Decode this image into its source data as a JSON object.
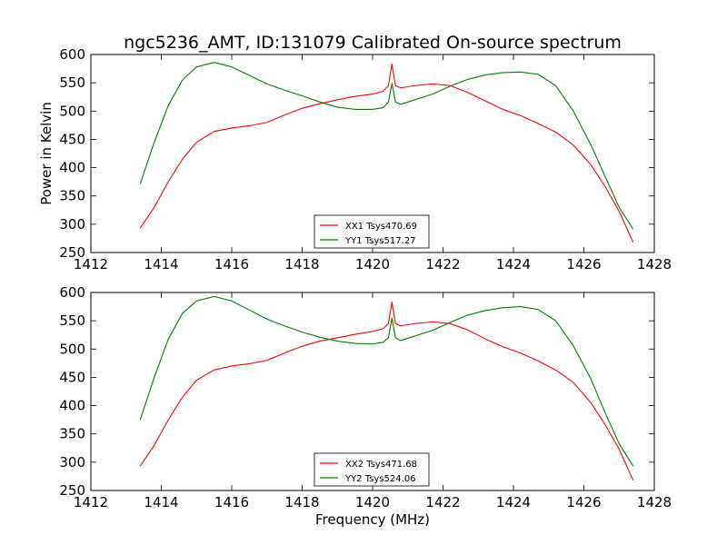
{
  "title": "ngc5236_AMT, ID:131079 Calibrated On-source spectrum",
  "chart_data": [
    {
      "type": "line",
      "title": "ngc5236_AMT, ID:131079 Calibrated On-source spectrum",
      "xlabel": "",
      "ylabel": "Power in Kelvin",
      "xlim": [
        1412,
        1428
      ],
      "ylim": [
        250,
        600
      ],
      "xticks": [
        1412,
        1414,
        1416,
        1418,
        1420,
        1422,
        1424,
        1426,
        1428
      ],
      "yticks": [
        250,
        300,
        350,
        400,
        450,
        500,
        550,
        600
      ],
      "legend_position": "lower-center",
      "series": [
        {
          "name": "XX1 Tsys470.69",
          "color": "#ff0000",
          "x": [
            1413.4,
            1413.8,
            1414.2,
            1414.6,
            1415.0,
            1415.5,
            1416.0,
            1416.5,
            1417.0,
            1417.5,
            1418.0,
            1418.5,
            1419.0,
            1419.5,
            1420.0,
            1420.3,
            1420.45,
            1420.55,
            1420.65,
            1420.8,
            1421.2,
            1421.7,
            1422.2,
            1422.7,
            1423.2,
            1423.7,
            1424.2,
            1424.7,
            1425.2,
            1425.7,
            1426.2,
            1426.6,
            1427.0,
            1427.4
          ],
          "y": [
            293,
            330,
            375,
            415,
            445,
            464,
            470,
            474,
            480,
            493,
            505,
            513,
            520,
            526,
            530,
            535,
            545,
            583,
            545,
            541,
            545,
            548,
            545,
            533,
            518,
            503,
            492,
            478,
            463,
            440,
            405,
            367,
            323,
            268
          ]
        },
        {
          "name": "YY1 Tsys517.27",
          "color": "#008000",
          "x": [
            1413.4,
            1413.8,
            1414.2,
            1414.6,
            1415.0,
            1415.5,
            1416.0,
            1416.5,
            1417.0,
            1417.5,
            1418.0,
            1418.5,
            1419.0,
            1419.5,
            1420.0,
            1420.3,
            1420.45,
            1420.55,
            1420.65,
            1420.8,
            1421.2,
            1421.7,
            1422.2,
            1422.7,
            1423.2,
            1423.7,
            1424.2,
            1424.7,
            1425.2,
            1425.7,
            1426.2,
            1426.6,
            1427.0,
            1427.4
          ],
          "y": [
            371,
            445,
            510,
            555,
            578,
            586,
            578,
            563,
            548,
            537,
            527,
            516,
            507,
            503,
            503,
            506,
            516,
            549,
            516,
            512,
            520,
            530,
            544,
            556,
            564,
            568,
            569,
            565,
            545,
            500,
            440,
            385,
            330,
            291
          ]
        }
      ]
    },
    {
      "type": "line",
      "title": "",
      "xlabel": "Frequency (MHz)",
      "ylabel": "",
      "xlim": [
        1412,
        1428
      ],
      "ylim": [
        250,
        600
      ],
      "xticks": [
        1412,
        1414,
        1416,
        1418,
        1420,
        1422,
        1424,
        1426,
        1428
      ],
      "yticks": [
        250,
        300,
        350,
        400,
        450,
        500,
        550,
        600
      ],
      "legend_position": "lower-center",
      "series": [
        {
          "name": "XX2 Tsys471.68",
          "color": "#ff0000",
          "x": [
            1413.4,
            1413.8,
            1414.2,
            1414.6,
            1415.0,
            1415.5,
            1416.0,
            1416.5,
            1417.0,
            1417.5,
            1418.0,
            1418.5,
            1419.0,
            1419.5,
            1420.0,
            1420.3,
            1420.45,
            1420.55,
            1420.65,
            1420.8,
            1421.2,
            1421.7,
            1422.2,
            1422.7,
            1423.2,
            1423.7,
            1424.2,
            1424.7,
            1425.2,
            1425.7,
            1426.2,
            1426.6,
            1427.0,
            1427.4
          ],
          "y": [
            293,
            330,
            375,
            415,
            445,
            463,
            470,
            474,
            480,
            493,
            505,
            514,
            520,
            526,
            531,
            536,
            545,
            583,
            545,
            541,
            545,
            548,
            545,
            534,
            518,
            504,
            493,
            479,
            463,
            441,
            405,
            367,
            323,
            268
          ]
        },
        {
          "name": "YY2 Tsys524.06",
          "color": "#008000",
          "x": [
            1413.4,
            1413.8,
            1414.2,
            1414.6,
            1415.0,
            1415.5,
            1416.0,
            1416.5,
            1417.0,
            1417.5,
            1418.0,
            1418.5,
            1419.0,
            1419.5,
            1420.0,
            1420.3,
            1420.45,
            1420.55,
            1420.65,
            1420.8,
            1421.2,
            1421.7,
            1422.2,
            1422.7,
            1423.2,
            1423.7,
            1424.2,
            1424.7,
            1425.2,
            1425.7,
            1426.2,
            1426.6,
            1427.0,
            1427.4
          ],
          "y": [
            375,
            450,
            518,
            563,
            585,
            593,
            585,
            569,
            553,
            541,
            530,
            521,
            514,
            510,
            509,
            512,
            520,
            555,
            520,
            515,
            523,
            533,
            547,
            560,
            568,
            573,
            575,
            570,
            550,
            506,
            447,
            388,
            333,
            293
          ]
        }
      ]
    }
  ]
}
